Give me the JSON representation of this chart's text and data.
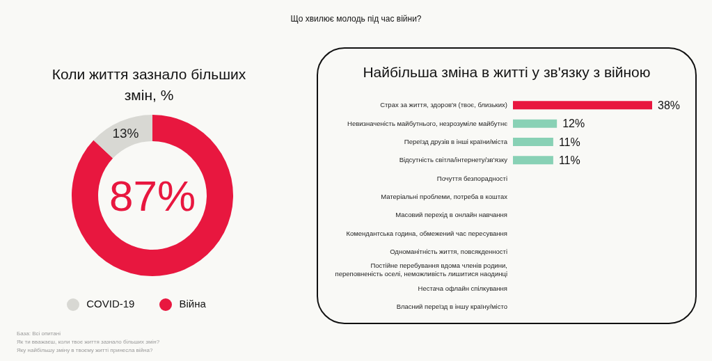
{
  "chart_data": [
    {
      "type": "donut",
      "title": "Коли життя зазнало більших змін, %",
      "categories": [
        "Війна",
        "COVID-19"
      ],
      "values": [
        87,
        13
      ],
      "colors": [
        "#e8173f",
        "#d8d8d3"
      ],
      "value_labels": [
        "87%",
        "13%"
      ],
      "legend": "bottom",
      "annotations": [
        "Що хвилює молодь під час війни?",
        "База: Всі опитані",
        "Як ти вважаєш, коли твоє життя зазнало більших змін?",
        "Яку найбільшу зміну в твоєму житті принесла війна?"
      ]
    },
    {
      "type": "bar",
      "orientation": "horizontal",
      "title": "Найбільша зміна в житті у зв'язку з війною",
      "categories": [
        "Страх за життя, здоров'я (твоє, близьких)",
        "Невизначеність майбутнього, незрозуміле майбутнє",
        "Переїзд друзів в інші країни/міста",
        "Відсутність світла/інтернету/зв'язку",
        "Почуття безпорадності",
        "Матеріальні проблеми, потреба в коштах",
        "Масовий перехід в онлайн навчання",
        "Комендантська година, обмежений час пересування",
        "Одноманітність життя, повсякденності",
        "Постійне перебування вдома членів родини, переповненість оселі, неможливість лишитися наодинці",
        "Нестача офлайн спілкування",
        "Власний переїзд в іншу країну/місто"
      ],
      "values": [
        38,
        12,
        11,
        11,
        null,
        null,
        null,
        null,
        null,
        null,
        null,
        null
      ],
      "colors": [
        "#e8173f",
        "#88d1b5",
        "#88d1b5",
        "#88d1b5",
        null,
        null,
        null,
        null,
        null,
        null,
        null,
        null
      ],
      "value_labels": [
        "38%",
        "12%",
        "11%",
        "11%",
        null,
        null,
        null,
        null,
        null,
        null,
        null,
        null
      ]
    }
  ]
}
